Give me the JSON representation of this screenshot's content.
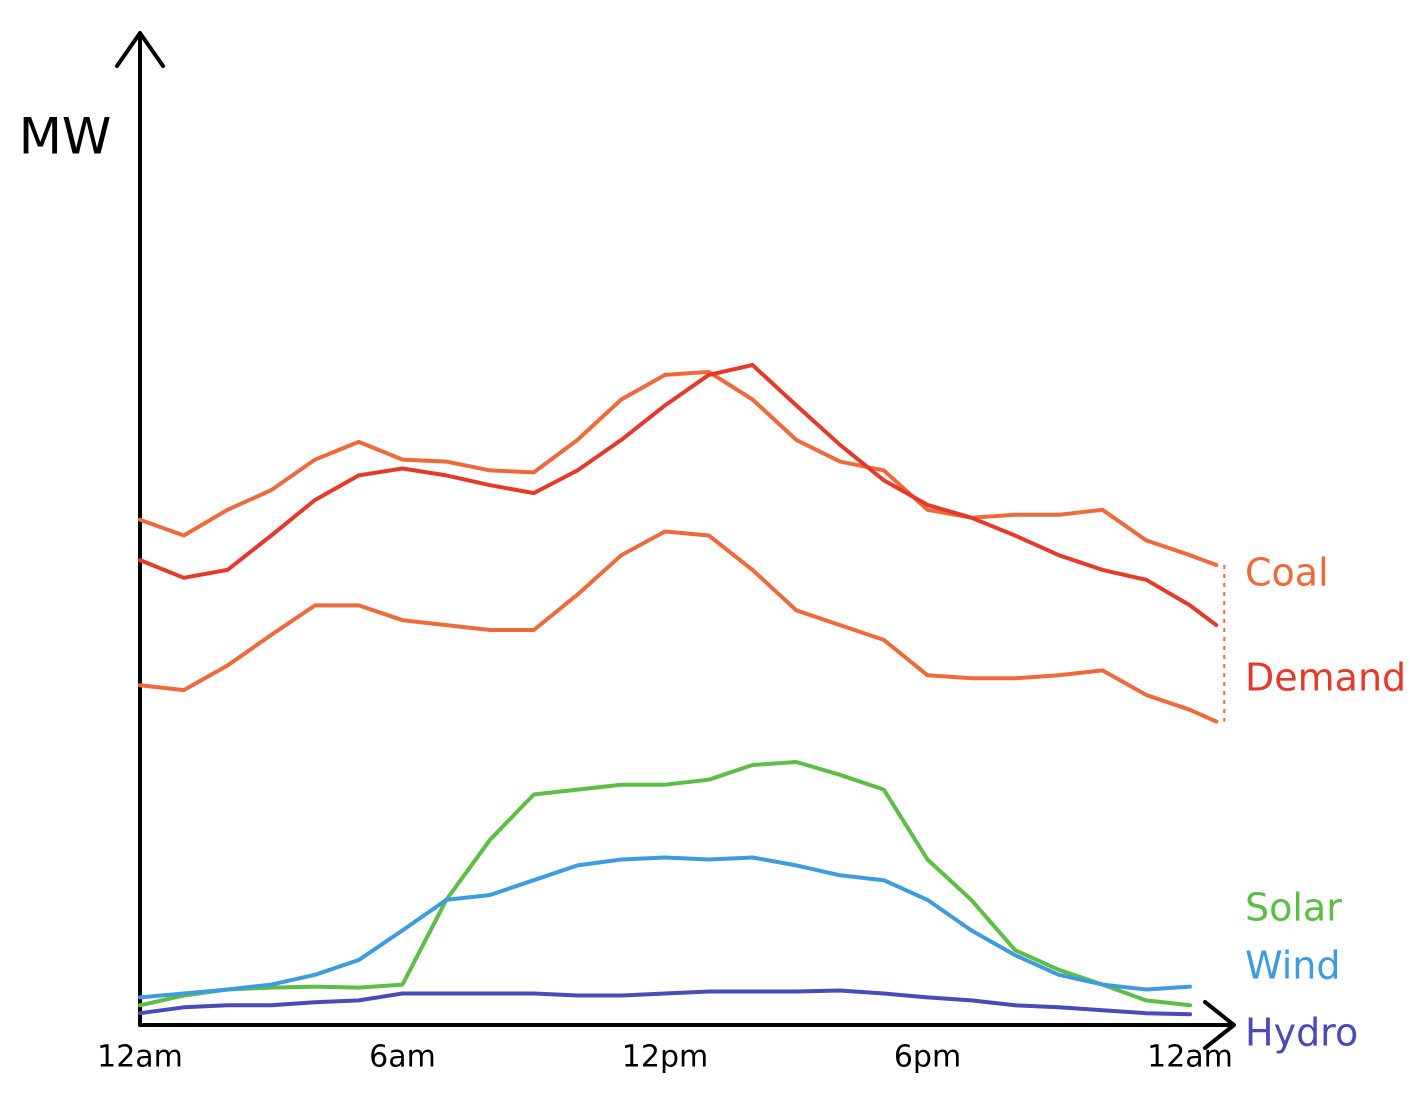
{
  "chart_data": {
    "type": "line",
    "y_label": "MW",
    "x": [
      0,
      1,
      2,
      3,
      4,
      5,
      6,
      7,
      8,
      9,
      10,
      11,
      12,
      13,
      14,
      15,
      16,
      17,
      18,
      19,
      20,
      21,
      22,
      23,
      24,
      24.6
    ],
    "xlim": [
      0,
      25.2
    ],
    "ylim": [
      0,
      100
    ],
    "xticks": [
      {
        "value": 0,
        "label": "12am"
      },
      {
        "value": 6,
        "label": "6am"
      },
      {
        "value": 12,
        "label": "12pm"
      },
      {
        "value": 18,
        "label": "6pm"
      },
      {
        "value": 24,
        "label": "12am"
      }
    ],
    "series": [
      {
        "name": "Coal",
        "color": "#ef6a3a",
        "values": [
          34.5,
          34.0,
          36.5,
          39.6,
          42.6,
          42.6,
          41.1,
          40.6,
          40.1,
          40.1,
          43.7,
          47.7,
          50.1,
          49.7,
          46.2,
          42.1,
          40.6,
          39.1,
          35.5,
          35.2,
          35.2,
          35.5,
          36.0,
          33.5,
          32.0,
          30.8
        ],
        "upper": [
          51.3,
          49.7,
          52.3,
          54.3,
          57.4,
          59.2,
          57.4,
          57.2,
          56.3,
          56.1,
          59.4,
          63.5,
          66.0,
          66.3,
          63.5,
          59.4,
          57.2,
          56.3,
          52.3,
          51.5,
          51.8,
          51.8,
          52.3,
          49.2,
          47.7,
          46.7
        ]
      },
      {
        "name": "Demand",
        "color": "#e53a2a",
        "values": [
          47.2,
          45.4,
          46.2,
          49.7,
          53.3,
          55.8,
          56.5,
          55.8,
          54.8,
          54.0,
          56.3,
          59.4,
          62.9,
          66.0,
          67.0,
          62.9,
          58.9,
          55.3,
          52.8,
          51.5,
          49.7,
          47.7,
          46.2,
          45.2,
          42.6,
          40.6
        ]
      },
      {
        "name": "Solar",
        "color": "#5cbf45",
        "values": [
          2.0,
          3.0,
          3.6,
          3.8,
          3.9,
          3.8,
          4.1,
          12.7,
          18.8,
          23.4,
          23.9,
          24.4,
          24.4,
          24.9,
          26.4,
          26.7,
          25.4,
          23.9,
          16.8,
          12.7,
          7.6,
          5.6,
          4.1,
          2.5,
          2.0,
          null
        ]
      },
      {
        "name": "Wind",
        "color": "#3f9be0",
        "values": [
          2.8,
          3.2,
          3.6,
          4.1,
          5.1,
          6.6,
          9.6,
          12.7,
          13.2,
          14.7,
          16.2,
          16.8,
          17.0,
          16.8,
          17.0,
          16.2,
          15.2,
          14.7,
          12.7,
          9.6,
          7.1,
          5.1,
          4.1,
          3.6,
          3.9,
          null
        ]
      },
      {
        "name": "Hydro",
        "color": "#4a4bb8",
        "values": [
          1.2,
          1.8,
          2.0,
          2.0,
          2.3,
          2.5,
          3.2,
          3.2,
          3.2,
          3.2,
          3.0,
          3.0,
          3.2,
          3.4,
          3.4,
          3.4,
          3.5,
          3.2,
          2.8,
          2.5,
          2.0,
          1.8,
          1.5,
          1.2,
          1.1,
          null
        ]
      }
    ]
  }
}
